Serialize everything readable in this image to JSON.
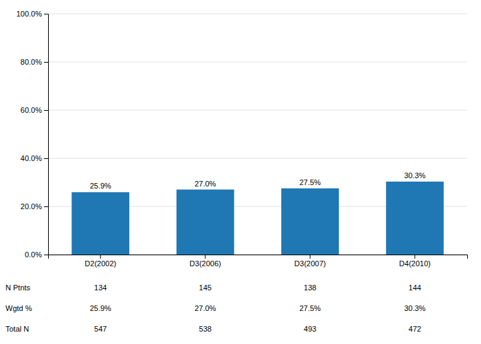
{
  "chart_data": {
    "type": "bar",
    "categories": [
      "D2(2002)",
      "D3(2006)",
      "D3(2007)",
      "D4(2010)"
    ],
    "values": [
      25.9,
      27.0,
      27.5,
      30.3
    ],
    "value_labels": [
      "25.9%",
      "27.0%",
      "27.5%",
      "30.3%"
    ],
    "data_labels": true,
    "ylim": [
      0,
      100
    ],
    "yticks": [
      {
        "value": 0,
        "label": "0.0%"
      },
      {
        "value": 20,
        "label": "20.0%"
      },
      {
        "value": 40,
        "label": "40.0%"
      },
      {
        "value": 60,
        "label": "60.0%"
      },
      {
        "value": 80,
        "label": "80.0%"
      },
      {
        "value": 100,
        "label": "100.0%"
      }
    ],
    "grid": true,
    "table": [
      {
        "name": "N Ptnts",
        "cells": [
          "134",
          "145",
          "138",
          "144"
        ]
      },
      {
        "name": "Wgtd %",
        "cells": [
          "25.9%",
          "27.0%",
          "27.5%",
          "30.3%"
        ]
      },
      {
        "name": "Total N",
        "cells": [
          "547",
          "538",
          "493",
          "472"
        ]
      }
    ]
  }
}
